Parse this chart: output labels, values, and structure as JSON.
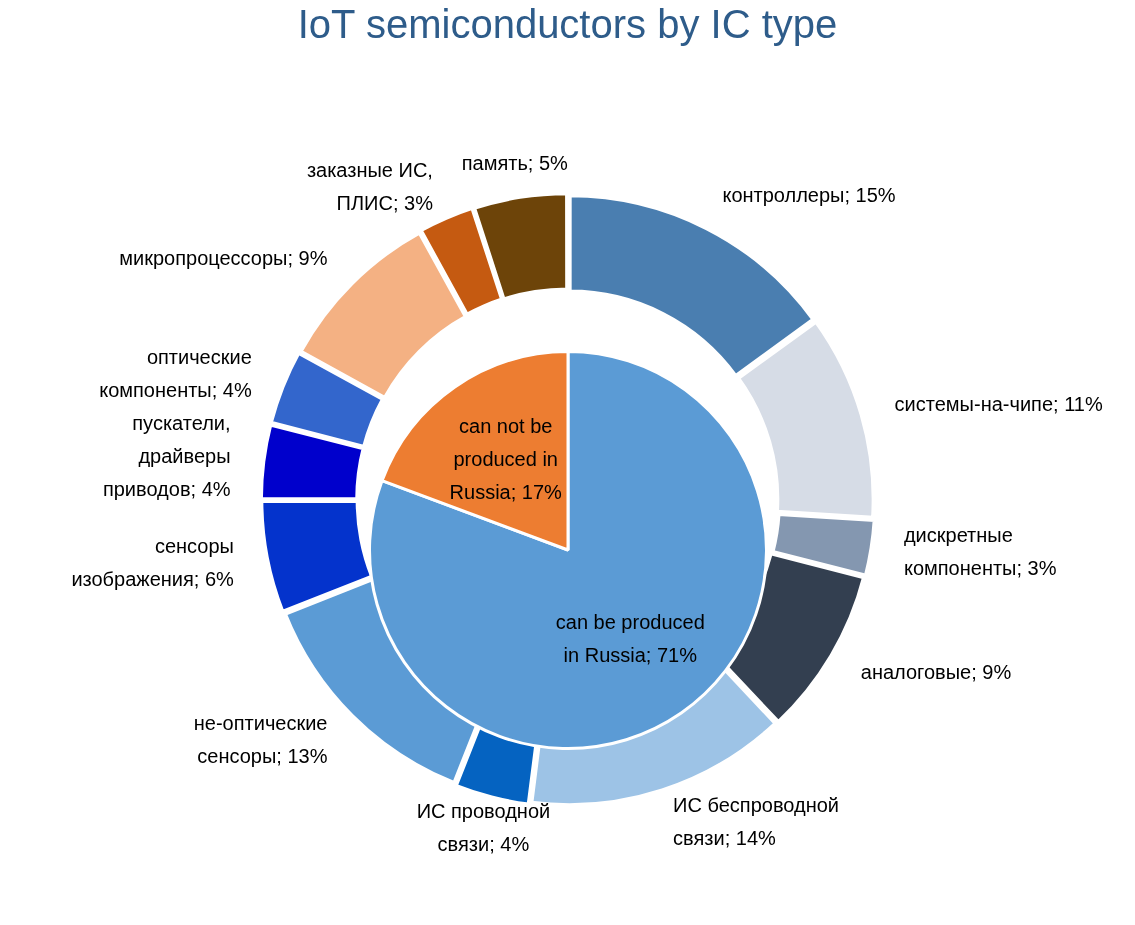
{
  "chart_data": [
    {
      "type": "donut",
      "title": "IoT semiconductors by IC type",
      "categories": [
        "контроллеры",
        "системы-на-чипе",
        "дискретные компоненты",
        "аналоговые",
        "ИС беспроводной связи",
        "ИС проводной связи",
        "не-оптические сенсоры",
        "сенсоры изображения",
        "пускатели, драйверы приводов",
        "оптические компоненты",
        "микропроцессоры",
        "заказные ИС, ПЛИС",
        "память"
      ],
      "values": [
        15,
        11,
        3,
        9,
        14,
        4,
        13,
        6,
        4,
        4,
        9,
        3,
        5
      ],
      "value_labels": [
        "15%",
        "11%",
        "3%",
        "9%",
        "14%",
        "4%",
        "13%",
        "6%",
        "4%",
        "4%",
        "9%",
        "3%",
        "5%"
      ],
      "colors": [
        "#4a7eb0",
        "#d6dce6",
        "#8497b0",
        "#333f50",
        "#9dc3e6",
        "#0563c1",
        "#5b9bd5",
        "#0433cc",
        "#0000cc",
        "#3366cc",
        "#f4b183",
        "#c55a11",
        "#6d4409"
      ]
    },
    {
      "type": "pie",
      "categories": [
        "can be produced in Russia",
        "can not be produced in Russia"
      ],
      "values": [
        71,
        17
      ],
      "value_labels": [
        "71%",
        "17%"
      ],
      "colors": [
        "#5b9bd5",
        "#ed7d31"
      ]
    }
  ]
}
